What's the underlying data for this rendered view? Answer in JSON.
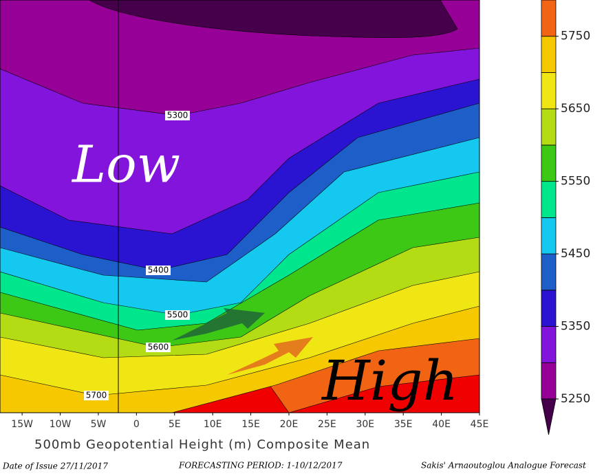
{
  "map": {
    "title": "500mb Geopotential Height (m) Composite Mean",
    "issue_date": "Date of Issue 27/11/2017",
    "period": "FORECASTING PERIOD: 1-10/12/2017",
    "credit": "Sakis' Arnaoutoglou Analogue Forecast",
    "low_label": "Low",
    "high_label": "High",
    "xlim": [
      -17.9,
      45
    ],
    "xticks": [
      {
        "value": -15,
        "label": "15W"
      },
      {
        "value": -10,
        "label": "10W"
      },
      {
        "value": -5,
        "label": "5W"
      },
      0,
      {
        "value": 5,
        "label": "5E"
      },
      {
        "value": 10,
        "label": "10E"
      },
      {
        "value": 15,
        "label": "15E"
      },
      {
        "value": 20,
        "label": "20E"
      },
      {
        "value": 25,
        "label": "25E"
      },
      {
        "value": 30,
        "label": "30E"
      },
      {
        "value": 35,
        "label": "35E"
      },
      {
        "value": 40,
        "label": "40E"
      },
      {
        "value": 45,
        "label": "45E"
      }
    ],
    "contour_labels": [
      5300,
      5400,
      5500,
      5600,
      5700
    ],
    "colorbar": {
      "range": [
        5250,
        5800
      ],
      "ticks": [
        5250,
        5350,
        5450,
        5550,
        5650,
        5750
      ],
      "below_color": "#46004b",
      "colors": [
        "#960096",
        "#8214dc",
        "#2a14d2",
        "#1e5ec8",
        "#14c8f0",
        "#00e68c",
        "#3cc814",
        "#b4dc14",
        "#f0e614",
        "#f5c800",
        "#f06414"
      ]
    }
  }
}
